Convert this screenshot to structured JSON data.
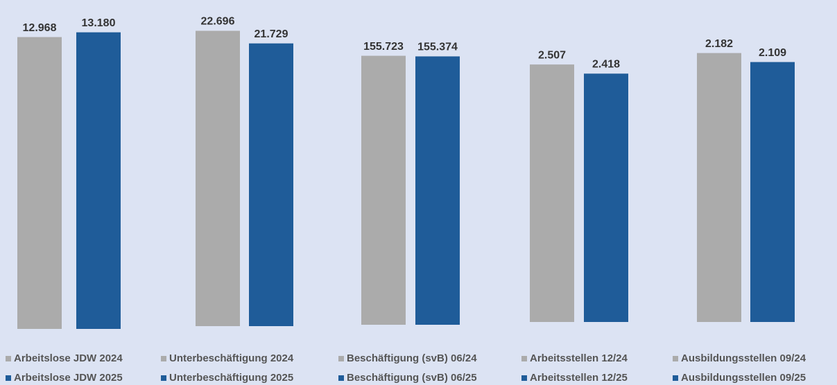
{
  "chart_data": [
    {
      "type": "bar",
      "ylim": [
        0,
        14000
      ],
      "series": [
        {
          "name": "Arbeitslose JDW 2024",
          "color": "#ababab",
          "values": [
            12968
          ],
          "value_labels": [
            "12.968"
          ]
        },
        {
          "name": "Arbeitslose JDW 2025",
          "color": "#1f5c99",
          "values": [
            13180
          ],
          "value_labels": [
            "13.180"
          ]
        }
      ]
    },
    {
      "type": "bar",
      "ylim": [
        0,
        24000
      ],
      "series": [
        {
          "name": "Unterbeschäftigung 2024",
          "color": "#ababab",
          "values": [
            22696
          ],
          "value_labels": [
            "22.696"
          ]
        },
        {
          "name": "Unterbeschäftigung 2025",
          "color": "#1f5c99",
          "values": [
            21729
          ],
          "value_labels": [
            "21.729"
          ]
        }
      ]
    },
    {
      "type": "bar",
      "ylim": [
        0,
        180000
      ],
      "series": [
        {
          "name": "Beschäftigung (svB) 06/24",
          "color": "#ababab",
          "values": [
            155723
          ],
          "value_labels": [
            "155.723"
          ]
        },
        {
          "name": "Beschäftigung (svB) 06/25",
          "color": "#1f5c99",
          "values": [
            155374
          ],
          "value_labels": [
            "155.374"
          ]
        }
      ]
    },
    {
      "type": "bar",
      "ylim": [
        0,
        3000
      ],
      "series": [
        {
          "name": "Arbeitsstellen 12/24",
          "color": "#ababab",
          "values": [
            2507
          ],
          "value_labels": [
            "2.507"
          ]
        },
        {
          "name": "Arbeitsstellen 12/25",
          "color": "#1f5c99",
          "values": [
            2418
          ],
          "value_labels": [
            "2.418"
          ]
        }
      ]
    },
    {
      "type": "bar",
      "ylim": [
        0,
        2500
      ],
      "series": [
        {
          "name": "Ausbildungsstellen 09/24",
          "color": "#ababab",
          "values": [
            2182
          ],
          "value_labels": [
            "2.182"
          ]
        },
        {
          "name": "Ausbildungsstellen 09/25",
          "color": "#1f5c99",
          "values": [
            2109
          ],
          "value_labels": [
            "2.109"
          ]
        }
      ]
    }
  ]
}
